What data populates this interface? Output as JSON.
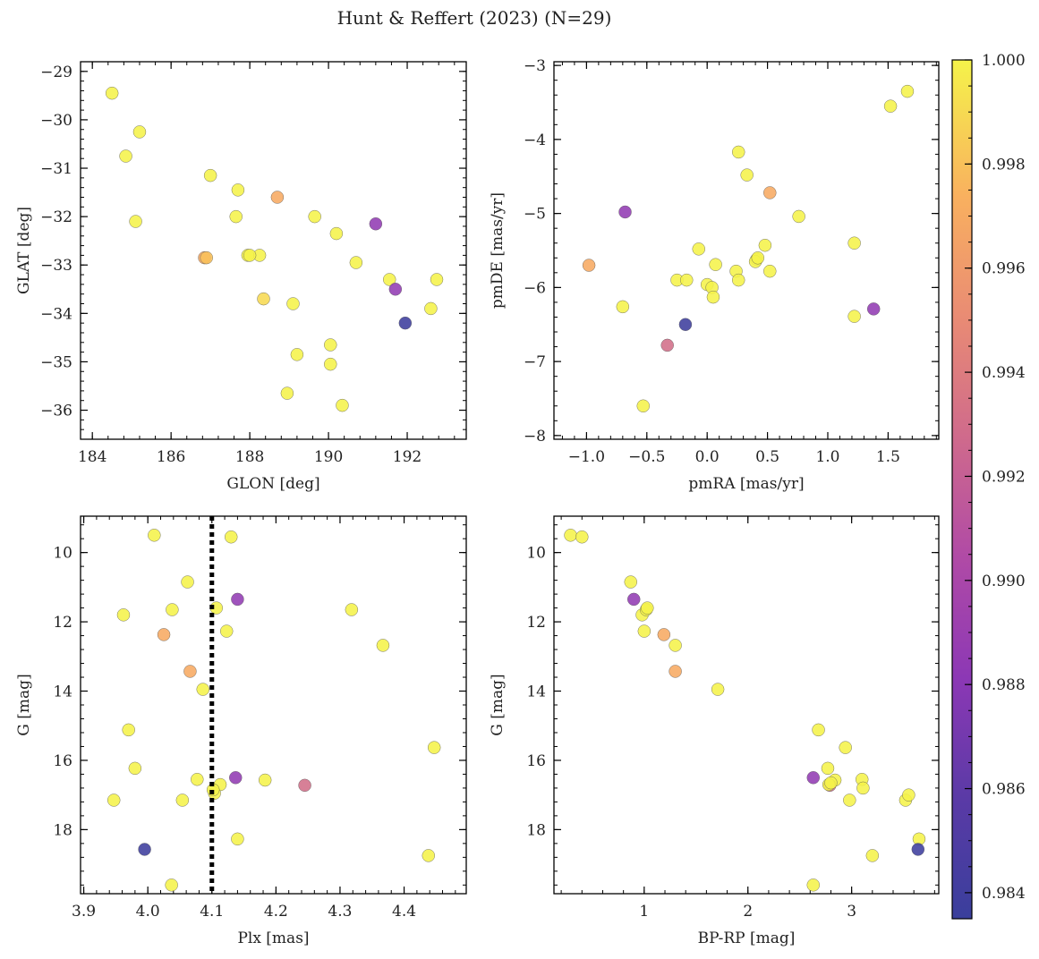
{
  "figure": {
    "title": "Hunt & Reffert (2023) (N=29)",
    "colormap": "plasma",
    "colorbar": {
      "range": [
        0.9835,
        1.0
      ],
      "ticks": [
        0.984,
        0.986,
        0.988,
        0.99,
        0.992,
        0.994,
        0.996,
        0.998,
        1.0
      ],
      "tick_labels": [
        "0.984",
        "0.986",
        "0.988",
        "0.990",
        "0.992",
        "0.994",
        "0.996",
        "0.998",
        "1.000"
      ]
    }
  },
  "chart_data": [
    {
      "id": "sky",
      "type": "scatter",
      "xlabel": "GLON [deg]",
      "ylabel": "GLAT [deg]",
      "xlim": [
        183.7,
        193.5
      ],
      "ylim": [
        -36.6,
        -28.8
      ],
      "xticks": [
        184,
        186,
        188,
        190,
        192
      ],
      "xtick_labels": [
        "184",
        "186",
        "188",
        "190",
        "192"
      ],
      "yticks": [
        -29,
        -30,
        -31,
        -32,
        -33,
        -34,
        -35,
        -36
      ],
      "ytick_labels": [
        "−29",
        "−30",
        "−31",
        "−32",
        "−33",
        "−34",
        "−35",
        "−36"
      ],
      "vline": null,
      "points": [
        [
          184.5,
          -29.45,
          1.0
        ],
        [
          185.2,
          -30.25,
          1.0
        ],
        [
          184.85,
          -30.75,
          1.0
        ],
        [
          185.1,
          -32.1,
          1.0
        ],
        [
          187.0,
          -31.15,
          1.0
        ],
        [
          187.7,
          -31.45,
          1.0
        ],
        [
          187.65,
          -32.0,
          1.0
        ],
        [
          188.7,
          -31.6,
          0.997
        ],
        [
          186.85,
          -32.85,
          0.997
        ],
        [
          187.95,
          -32.8,
          1.0
        ],
        [
          188.25,
          -32.8,
          1.0
        ],
        [
          188.35,
          -33.7,
          0.999
        ],
        [
          189.1,
          -33.8,
          1.0
        ],
        [
          189.65,
          -32.0,
          1.0
        ],
        [
          190.2,
          -32.35,
          1.0
        ],
        [
          190.7,
          -32.95,
          1.0
        ],
        [
          191.2,
          -32.15,
          0.9885
        ],
        [
          191.55,
          -33.3,
          1.0
        ],
        [
          191.7,
          -33.5,
          0.9885
        ],
        [
          191.95,
          -34.2,
          0.9838
        ],
        [
          192.6,
          -33.9,
          1.0
        ],
        [
          192.75,
          -33.3,
          1.0
        ],
        [
          190.05,
          -34.65,
          1.0
        ],
        [
          190.05,
          -35.05,
          1.0
        ],
        [
          189.2,
          -34.85,
          1.0
        ],
        [
          188.95,
          -35.65,
          1.0
        ],
        [
          190.35,
          -35.9,
          1.0
        ],
        [
          186.9,
          -32.85,
          0.998
        ],
        [
          188.0,
          -32.8,
          1.0
        ]
      ]
    },
    {
      "id": "pm",
      "type": "scatter",
      "xlabel": "pmRA [mas/yr]",
      "ylabel": "pmDE [mas/yr]",
      "xlim": [
        -1.27,
        1.92
      ],
      "ylim": [
        -8.05,
        -2.95
      ],
      "xticks": [
        -1.0,
        -0.5,
        0.0,
        0.5,
        1.0,
        1.5
      ],
      "xtick_labels": [
        "−1.0",
        "−0.5",
        "0.0",
        "0.5",
        "1.0",
        "1.5"
      ],
      "yticks": [
        -3,
        -4,
        -5,
        -6,
        -7,
        -8
      ],
      "ytick_labels": [
        "−3",
        "−4",
        "−5",
        "−6",
        "−7",
        "−8"
      ],
      "vline": null,
      "points": [
        [
          1.66,
          -3.35,
          1.0
        ],
        [
          1.52,
          -3.55,
          1.0
        ],
        [
          0.26,
          -4.17,
          1.0
        ],
        [
          0.33,
          -4.48,
          1.0
        ],
        [
          0.52,
          -4.72,
          0.997
        ],
        [
          0.76,
          -5.04,
          1.0
        ],
        [
          -0.68,
          -4.98,
          0.9885
        ],
        [
          -0.98,
          -5.7,
          0.997
        ],
        [
          -0.07,
          -5.48,
          1.0
        ],
        [
          0.48,
          -5.43,
          1.0
        ],
        [
          1.22,
          -5.4,
          1.0
        ],
        [
          0.07,
          -5.69,
          1.0
        ],
        [
          0.24,
          -5.78,
          1.0
        ],
        [
          0.52,
          -5.78,
          1.0
        ],
        [
          0.41,
          -5.62,
          1.0
        ],
        [
          0.4,
          -5.65,
          1.0
        ],
        [
          -0.25,
          -5.9,
          1.0
        ],
        [
          -0.17,
          -5.9,
          1.0
        ],
        [
          0.26,
          -5.9,
          1.0
        ],
        [
          0.0,
          -5.96,
          1.0
        ],
        [
          0.04,
          -6.0,
          1.0
        ],
        [
          0.05,
          -6.13,
          1.0
        ],
        [
          -0.7,
          -6.26,
          1.0
        ],
        [
          1.22,
          -6.39,
          1.0
        ],
        [
          1.38,
          -6.29,
          0.9885
        ],
        [
          -0.18,
          -6.5,
          0.9838
        ],
        [
          -0.33,
          -6.78,
          0.993
        ],
        [
          -0.53,
          -7.6,
          1.0
        ],
        [
          0.42,
          -5.6,
          1.0
        ]
      ]
    },
    {
      "id": "plx",
      "type": "scatter",
      "xlabel": "Plx [mas]",
      "ylabel": "G [mag]",
      "xlim": [
        3.895,
        4.497
      ],
      "ylim": [
        19.85,
        8.95
      ],
      "xticks": [
        3.9,
        4.0,
        4.1,
        4.2,
        4.3,
        4.4
      ],
      "xtick_labels": [
        "3.9",
        "4.0",
        "4.1",
        "4.2",
        "4.3",
        "4.4"
      ],
      "yticks": [
        10,
        12,
        14,
        16,
        18
      ],
      "ytick_labels": [
        "10",
        "12",
        "14",
        "16",
        "18"
      ],
      "vline": 4.1,
      "points": [
        [
          4.01,
          9.5,
          1.0
        ],
        [
          4.13,
          9.55,
          1.0
        ],
        [
          4.062,
          10.85,
          1.0
        ],
        [
          4.14,
          11.35,
          0.9885
        ],
        [
          3.962,
          11.8,
          1.0
        ],
        [
          4.038,
          11.65,
          1.0
        ],
        [
          4.107,
          11.6,
          1.0
        ],
        [
          4.318,
          11.65,
          1.0
        ],
        [
          4.025,
          12.37,
          0.997
        ],
        [
          4.123,
          12.27,
          1.0
        ],
        [
          4.367,
          12.68,
          1.0
        ],
        [
          4.066,
          13.43,
          0.997
        ],
        [
          4.086,
          13.95,
          1.0
        ],
        [
          3.97,
          15.12,
          1.0
        ],
        [
          4.447,
          15.63,
          1.0
        ],
        [
          3.98,
          16.23,
          1.0
        ],
        [
          4.077,
          16.55,
          1.0
        ],
        [
          4.137,
          16.5,
          0.9885
        ],
        [
          4.183,
          16.57,
          1.0
        ],
        [
          4.245,
          16.72,
          0.993
        ],
        [
          4.113,
          16.7,
          1.0
        ],
        [
          4.104,
          16.95,
          1.0
        ],
        [
          3.947,
          17.15,
          1.0
        ],
        [
          4.054,
          17.15,
          1.0
        ],
        [
          4.14,
          18.27,
          1.0
        ],
        [
          3.995,
          18.57,
          0.9838
        ],
        [
          4.438,
          18.75,
          1.0
        ],
        [
          4.037,
          19.6,
          1.0
        ],
        [
          4.102,
          16.85,
          1.0
        ]
      ]
    },
    {
      "id": "cmd",
      "type": "scatter",
      "xlabel": "BP-RP [mag]",
      "ylabel": "G [mag]",
      "xlim": [
        0.13,
        3.84
      ],
      "ylim": [
        19.85,
        8.95
      ],
      "xticks": [
        1,
        2,
        3
      ],
      "xtick_labels": [
        "1",
        "2",
        "3"
      ],
      "yticks": [
        10,
        12,
        14,
        16,
        18
      ],
      "ytick_labels": [
        "10",
        "12",
        "14",
        "16",
        "18"
      ],
      "vline": null,
      "points": [
        [
          0.29,
          9.5,
          1.0
        ],
        [
          0.4,
          9.55,
          1.0
        ],
        [
          0.87,
          10.85,
          1.0
        ],
        [
          0.9,
          11.35,
          0.9885
        ],
        [
          0.98,
          11.8,
          1.0
        ],
        [
          1.02,
          11.65,
          1.0
        ],
        [
          1.03,
          11.6,
          1.0
        ],
        [
          1.0,
          12.27,
          1.0
        ],
        [
          1.19,
          12.37,
          0.997
        ],
        [
          1.3,
          12.68,
          1.0
        ],
        [
          1.3,
          13.43,
          0.997
        ],
        [
          1.71,
          13.95,
          1.0
        ],
        [
          2.68,
          15.12,
          1.0
        ],
        [
          2.94,
          15.63,
          1.0
        ],
        [
          2.77,
          16.23,
          1.0
        ],
        [
          2.63,
          16.5,
          0.9885
        ],
        [
          2.84,
          16.57,
          1.0
        ],
        [
          2.79,
          16.72,
          0.993
        ],
        [
          2.78,
          16.7,
          1.0
        ],
        [
          3.1,
          16.55,
          1.0
        ],
        [
          3.11,
          16.8,
          1.0
        ],
        [
          2.98,
          17.15,
          1.0
        ],
        [
          3.52,
          17.15,
          1.0
        ],
        [
          3.55,
          17.0,
          1.0
        ],
        [
          3.65,
          18.27,
          1.0
        ],
        [
          3.64,
          18.57,
          0.9838
        ],
        [
          3.2,
          18.75,
          1.0
        ],
        [
          2.63,
          19.6,
          1.0
        ],
        [
          2.8,
          16.65,
          1.0
        ]
      ]
    }
  ]
}
